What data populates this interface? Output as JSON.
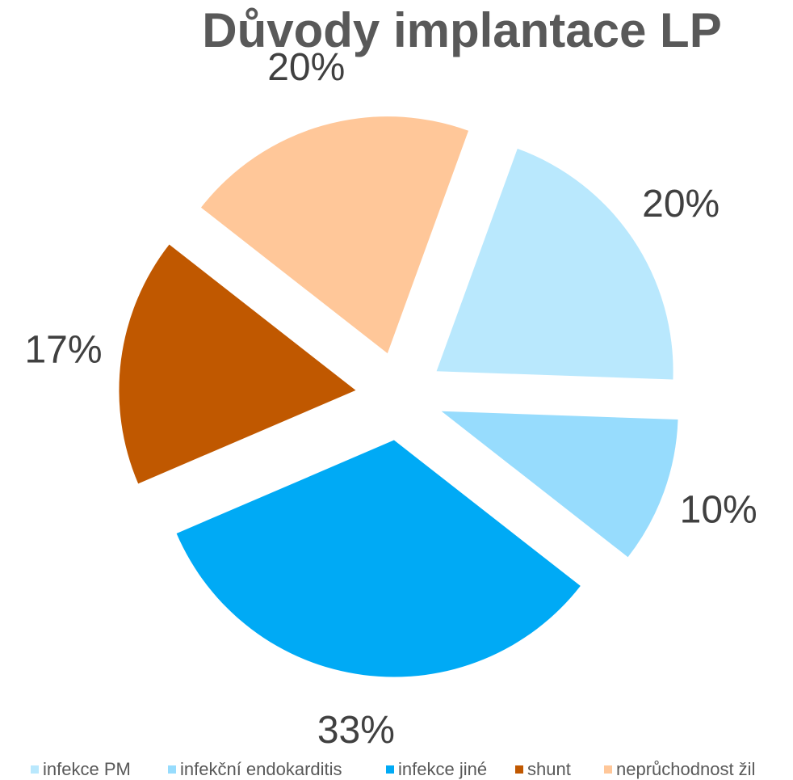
{
  "chart_data": {
    "type": "pie",
    "title": "Důvody implantace LP",
    "categories": [
      "infekce PM",
      "infekční endokarditis",
      "infekce jiné",
      "shunt",
      "neprůchodnost žil"
    ],
    "values": [
      20,
      10,
      33,
      17,
      20
    ],
    "value_labels": [
      "20%",
      "10%",
      "33%",
      "17%",
      "20%"
    ],
    "colors": [
      "#b9e8fd",
      "#97dcfd",
      "#00aaf5",
      "#c05800",
      "#ffc799"
    ],
    "legend": "bottom"
  }
}
